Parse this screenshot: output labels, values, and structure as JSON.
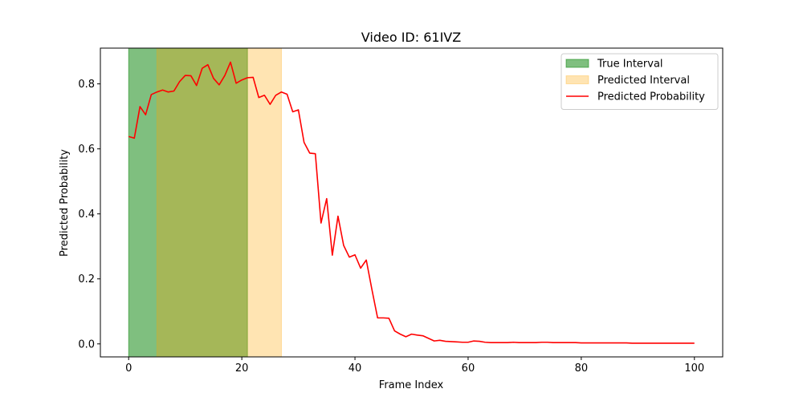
{
  "chart_data": {
    "type": "line",
    "title": "Video ID: 61IVZ",
    "xlabel": "Frame Index",
    "ylabel": "Predicted Probability",
    "xlim": [
      -5,
      105
    ],
    "ylim": [
      -0.04,
      0.91
    ],
    "xticks": [
      0,
      20,
      40,
      60,
      80,
      100
    ],
    "xtick_labels": [
      "0",
      "20",
      "40",
      "60",
      "80",
      "100"
    ],
    "yticks": [
      0.0,
      0.2,
      0.4,
      0.6,
      0.8
    ],
    "ytick_labels": [
      "0.0",
      "0.2",
      "0.4",
      "0.6",
      "0.8"
    ],
    "grid": false,
    "legend_position": "top-right",
    "intervals": [
      {
        "name": "True Interval",
        "start": 0,
        "end": 21,
        "color": "#008000",
        "opacity": 0.5
      },
      {
        "name": "Predicted Interval",
        "start": 5,
        "end": 27,
        "color": "#FFA500",
        "opacity": 0.3
      }
    ],
    "series": [
      {
        "name": "Predicted Probability",
        "color": "#ff0000",
        "x": [
          0,
          1,
          2,
          3,
          4,
          5,
          6,
          7,
          8,
          9,
          10,
          11,
          12,
          13,
          14,
          15,
          16,
          17,
          18,
          19,
          20,
          21,
          22,
          23,
          24,
          25,
          26,
          27,
          28,
          29,
          30,
          31,
          32,
          33,
          34,
          35,
          36,
          37,
          38,
          39,
          40,
          41,
          42,
          43,
          44,
          45,
          46,
          47,
          48,
          49,
          50,
          51,
          52,
          53,
          54,
          55,
          56,
          57,
          58,
          59,
          60,
          61,
          62,
          63,
          64,
          65,
          66,
          67,
          68,
          69,
          70,
          71,
          72,
          73,
          74,
          75,
          76,
          77,
          78,
          79,
          80,
          81,
          82,
          83,
          84,
          85,
          86,
          87,
          88,
          89,
          90,
          91,
          92,
          93,
          94,
          95,
          96,
          97,
          98,
          99,
          100
        ],
        "y": [
          0.638,
          0.633,
          0.73,
          0.705,
          0.767,
          0.775,
          0.781,
          0.775,
          0.778,
          0.807,
          0.826,
          0.825,
          0.795,
          0.848,
          0.859,
          0.817,
          0.797,
          0.826,
          0.867,
          0.802,
          0.812,
          0.819,
          0.82,
          0.758,
          0.765,
          0.737,
          0.765,
          0.775,
          0.768,
          0.714,
          0.72,
          0.62,
          0.587,
          0.585,
          0.372,
          0.447,
          0.273,
          0.393,
          0.303,
          0.267,
          0.274,
          0.233,
          0.258,
          0.167,
          0.08,
          0.08,
          0.079,
          0.04,
          0.03,
          0.022,
          0.03,
          0.027,
          0.025,
          0.017,
          0.009,
          0.011,
          0.008,
          0.007,
          0.006,
          0.005,
          0.005,
          0.009,
          0.008,
          0.005,
          0.004,
          0.004,
          0.004,
          0.004,
          0.005,
          0.004,
          0.004,
          0.004,
          0.004,
          0.005,
          0.005,
          0.004,
          0.004,
          0.004,
          0.004,
          0.004,
          0.003,
          0.003,
          0.003,
          0.003,
          0.003,
          0.003,
          0.003,
          0.003,
          0.003,
          0.002,
          0.002,
          0.002,
          0.002,
          0.002,
          0.002,
          0.002,
          0.002,
          0.002,
          0.002,
          0.002,
          0.002
        ]
      }
    ]
  }
}
